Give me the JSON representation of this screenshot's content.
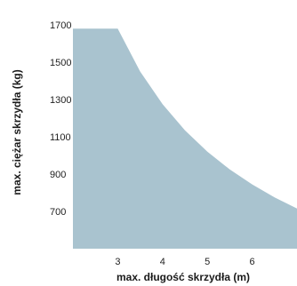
{
  "chart_data": {
    "type": "area",
    "title": "",
    "xlabel": "max. długość skrzydła (m)",
    "ylabel": "max. ciężar skrzydła (kg)",
    "xlim": [
      2.0,
      7.0
    ],
    "ylim": [
      500,
      1700
    ],
    "x_ticks": [
      "3",
      "4",
      "5",
      "6"
    ],
    "y_ticks": [
      "700",
      "900",
      "1100",
      "1300",
      "1500",
      "1700"
    ],
    "grid": false,
    "fill_color": "#a9c3cf",
    "series": [
      {
        "x": [
          2.0,
          2.5,
          3.0,
          3.5,
          4.0,
          4.5,
          5.0,
          5.5,
          6.0,
          6.5,
          7.0
        ],
        "y": [
          1680,
          1680,
          1680,
          1450,
          1275,
          1135,
          1020,
          925,
          845,
          775,
          715
        ]
      }
    ]
  }
}
